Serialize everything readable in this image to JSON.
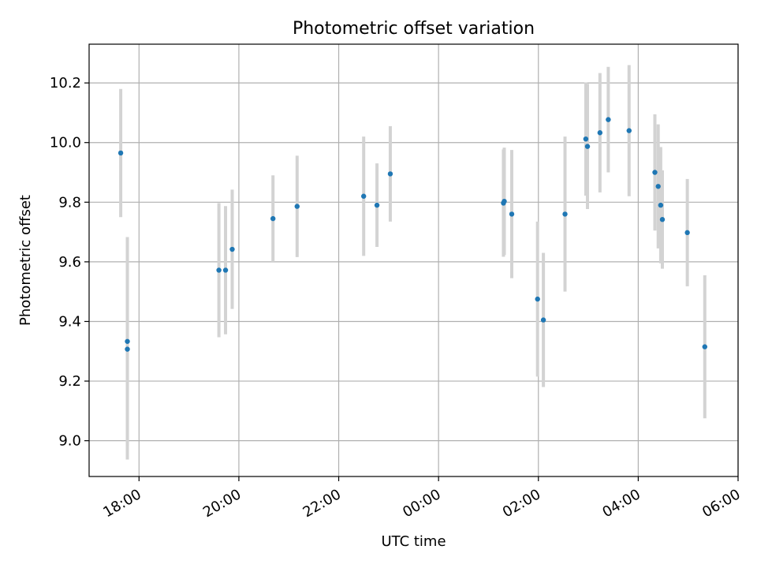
{
  "chart_data": {
    "type": "scatter",
    "title": "Photometric offset variation",
    "xlabel": "UTC time",
    "ylabel": "Photometric offset",
    "grid": true,
    "xlim": [
      "17:00",
      "06:00"
    ],
    "ylim": [
      8.88,
      10.33
    ],
    "x_ticks": [
      "18:00",
      "20:00",
      "22:00",
      "00:00",
      "02:00",
      "04:00",
      "06:00"
    ],
    "y_ticks": [
      "9.0",
      "9.2",
      "9.4",
      "9.6",
      "9.8",
      "10.0",
      "10.2"
    ],
    "colors": {
      "points": "#1f77b4",
      "errorbars": "#d3d3d3",
      "grid": "#b0b0b0"
    },
    "series": [
      {
        "points": [
          {
            "x": "17:38",
            "y": 9.965,
            "yerr": 0.215
          },
          {
            "x": "17:46",
            "y": 9.333,
            "yerr": 0.35
          },
          {
            "x": "17:46",
            "y": 9.307,
            "yerr": 0.37
          },
          {
            "x": "19:36",
            "y": 9.572,
            "yerr": 0.225
          },
          {
            "x": "19:44",
            "y": 9.572,
            "yerr": 0.215
          },
          {
            "x": "19:52",
            "y": 9.642,
            "yerr": 0.2
          },
          {
            "x": "20:41",
            "y": 9.745,
            "yerr": 0.145
          },
          {
            "x": "21:10",
            "y": 9.786,
            "yerr": 0.17
          },
          {
            "x": "22:30",
            "y": 9.82,
            "yerr": 0.2
          },
          {
            "x": "22:46",
            "y": 9.79,
            "yerr": 0.14
          },
          {
            "x": "23:02",
            "y": 9.895,
            "yerr": 0.16
          },
          {
            "x": "01:18",
            "y": 9.797,
            "yerr": 0.18
          },
          {
            "x": "01:19",
            "y": 9.803,
            "yerr": 0.18
          },
          {
            "x": "01:28",
            "y": 9.76,
            "yerr": 0.215
          },
          {
            "x": "01:59",
            "y": 9.475,
            "yerr": 0.26
          },
          {
            "x": "02:06",
            "y": 9.405,
            "yerr": 0.225
          },
          {
            "x": "02:32",
            "y": 9.76,
            "yerr": 0.26
          },
          {
            "x": "02:57",
            "y": 10.012,
            "yerr": 0.19
          },
          {
            "x": "02:59",
            "y": 9.987,
            "yerr": 0.21
          },
          {
            "x": "03:14",
            "y": 10.033,
            "yerr": 0.2
          },
          {
            "x": "03:24",
            "y": 10.077,
            "yerr": 0.177
          },
          {
            "x": "03:49",
            "y": 10.04,
            "yerr": 0.22
          },
          {
            "x": "04:20",
            "y": 9.9,
            "yerr": 0.195
          },
          {
            "x": "04:24",
            "y": 9.853,
            "yerr": 0.208
          },
          {
            "x": "04:27",
            "y": 9.79,
            "yerr": 0.195
          },
          {
            "x": "04:29",
            "y": 9.742,
            "yerr": 0.165
          },
          {
            "x": "04:59",
            "y": 9.698,
            "yerr": 0.18
          },
          {
            "x": "05:20",
            "y": 9.315,
            "yerr": 0.24
          }
        ]
      }
    ]
  }
}
